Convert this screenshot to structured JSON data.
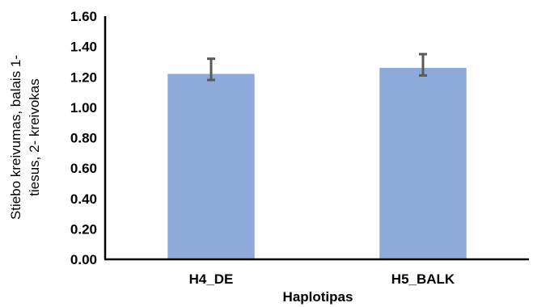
{
  "chart_data": {
    "type": "bar",
    "categories": [
      "H4_DE",
      "H5_BALK"
    ],
    "values": [
      1.22,
      1.26
    ],
    "error_bars": [
      {
        "low": 1.18,
        "high": 1.32
      },
      {
        "low": 1.21,
        "high": 1.35
      }
    ],
    "xlabel": "Haplotipas",
    "ylabel_lines": [
      "Stiebo kreivumas, balais 1-",
      "tiesus, 2- kreivokas"
    ],
    "ylim": [
      0,
      1.6
    ],
    "yticks": [
      "0.00",
      "0.20",
      "0.40",
      "0.60",
      "0.80",
      "1.00",
      "1.20",
      "1.40",
      "1.60"
    ],
    "grid": false,
    "legend": "none",
    "colors": {
      "bar": "#8eaadb",
      "error_bar": "#595959",
      "axis": "#000000"
    }
  }
}
